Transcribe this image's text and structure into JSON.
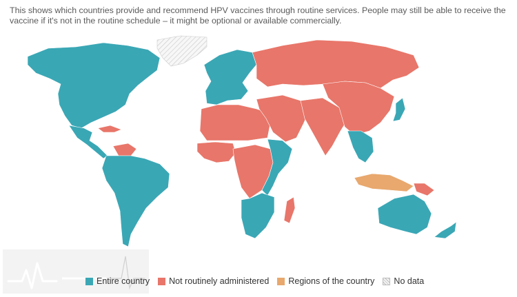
{
  "description": "This shows which countries provide and recommend HPV vaccines through routine services. People may still be able to receive the vaccine if it's not in the routine schedule – it might be optional or available commercially.",
  "legend": {
    "entire": {
      "label": "Entire country",
      "color": "#3aa7b5"
    },
    "not_routine": {
      "label": "Not routinely administered",
      "color": "#e8766a"
    },
    "regions": {
      "label": "Regions of the country",
      "color": "#e8a86e"
    },
    "no_data": {
      "label": "No data",
      "color": "#dddddd"
    }
  },
  "regions": [
    {
      "name": "north-america",
      "status": "entire"
    },
    {
      "name": "greenland",
      "status": "no_data"
    },
    {
      "name": "mexico-central-america",
      "status": "entire"
    },
    {
      "name": "cuba-caribbean",
      "status": "not_routine"
    },
    {
      "name": "venezuela",
      "status": "not_routine"
    },
    {
      "name": "south-america",
      "status": "entire"
    },
    {
      "name": "europe",
      "status": "entire"
    },
    {
      "name": "russia",
      "status": "not_routine"
    },
    {
      "name": "north-africa",
      "status": "not_routine"
    },
    {
      "name": "west-africa",
      "status": "not_routine"
    },
    {
      "name": "east-africa",
      "status": "entire"
    },
    {
      "name": "central-africa",
      "status": "not_routine"
    },
    {
      "name": "southern-africa",
      "status": "entire"
    },
    {
      "name": "madagascar",
      "status": "not_routine"
    },
    {
      "name": "middle-east",
      "status": "not_routine"
    },
    {
      "name": "south-asia",
      "status": "not_routine"
    },
    {
      "name": "china",
      "status": "not_routine"
    },
    {
      "name": "japan",
      "status": "entire"
    },
    {
      "name": "southeast-asia",
      "status": "entire"
    },
    {
      "name": "indonesia",
      "status": "regions"
    },
    {
      "name": "papua-new-guinea",
      "status": "not_routine"
    },
    {
      "name": "australia",
      "status": "entire"
    },
    {
      "name": "new-zealand",
      "status": "entire"
    }
  ]
}
